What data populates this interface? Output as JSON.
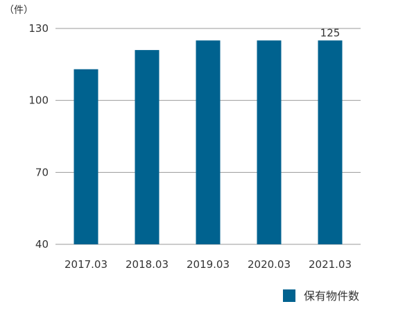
{
  "chart_data": {
    "type": "bar",
    "unit_label": "（件）",
    "categories": [
      "2017.03",
      "2018.03",
      "2019.03",
      "2020.03",
      "2021.03"
    ],
    "series": [
      {
        "name": "保有物件数",
        "values": [
          113,
          121,
          125,
          125,
          125
        ],
        "color": "#00628f"
      }
    ],
    "data_labels": [
      {
        "category": "2021.03",
        "text": "125"
      }
    ],
    "y_ticks": [
      40,
      70,
      100,
      130
    ],
    "ylim": [
      40,
      130
    ],
    "grid": true,
    "legend_position": "bottom-right"
  }
}
